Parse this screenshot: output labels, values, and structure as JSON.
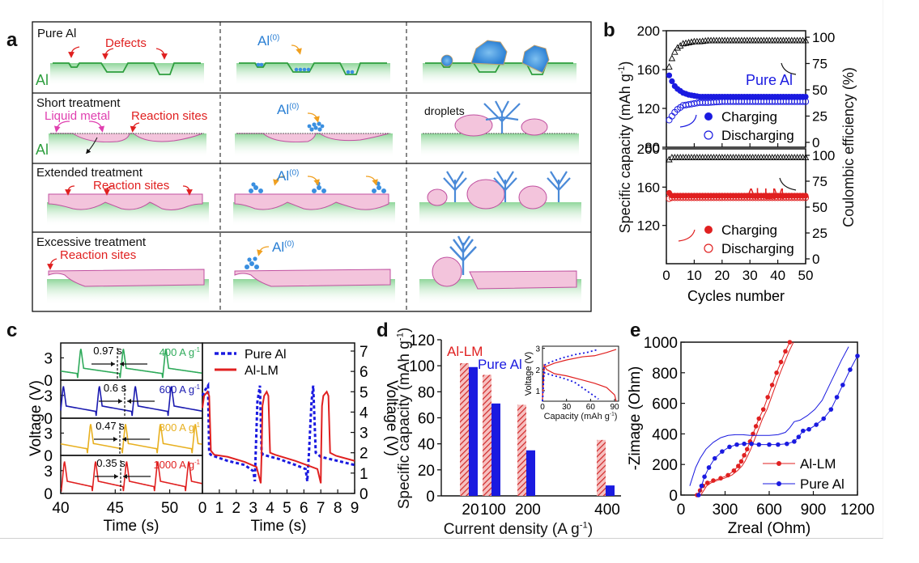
{
  "figure": {
    "panel_letters": [
      "a",
      "b",
      "c",
      "d",
      "e"
    ]
  },
  "panel_a": {
    "rows": [
      {
        "title": "Pure Al",
        "base_label": "Al",
        "annotations": [
          "Defects"
        ],
        "middle_label": "Al",
        "middle_sup": "(0)",
        "right_label": ""
      },
      {
        "title": "Short treatment",
        "base_label": "Al",
        "annotations": [
          "Liquid metal",
          "Reaction sites"
        ],
        "middle_label": "Al",
        "middle_sup": "(0)",
        "right_label": "droplets"
      },
      {
        "title": "Extended treatment",
        "base_label": "",
        "annotations": [
          "Reaction sites"
        ],
        "middle_label": "Al",
        "middle_sup": "(0)",
        "right_label": ""
      },
      {
        "title": "Excessive treatment",
        "base_label": "",
        "annotations": [
          "Reaction sites"
        ],
        "middle_label": "Al",
        "middle_sup": "(0)",
        "right_label": ""
      }
    ],
    "colors": {
      "al": "#2e9e3e",
      "defect": "#e02020",
      "lm": "#e040b0",
      "al0": "#2a7fd4",
      "arrow": "#f0a020"
    }
  },
  "chart_data": [
    {
      "id": "b",
      "type": "scatter",
      "title": "",
      "xlabel": "Cycles number",
      "ylabel": "Specific capacity (mAh g-1)",
      "ylabel_right": "Coulombic efficiency (%)",
      "xlim": [
        0,
        50
      ],
      "xticks": [
        0,
        10,
        20,
        30,
        40,
        50
      ],
      "subplots": [
        {
          "name": "Pure Al",
          "ylim": [
            80,
            200
          ],
          "yticks": [
            80,
            120,
            160,
            200
          ],
          "ylim_right": [
            0,
            100
          ],
          "yticks_right": [
            0,
            25,
            50,
            75,
            100
          ],
          "color": "#1a1ae0",
          "series": [
            {
              "name": "Charging",
              "axis": "left",
              "marker": "filled-circle",
              "x": [
                1,
                2,
                3,
                4,
                5,
                6,
                8,
                10,
                12,
                15,
                20,
                25,
                30,
                35,
                40,
                45,
                50
              ],
              "y": [
                154,
                148,
                143,
                140,
                138,
                136,
                134,
                133,
                132,
                132,
                132,
                132,
                132,
                132,
                132,
                132,
                132
              ]
            },
            {
              "name": "Discharging",
              "axis": "left",
              "marker": "open-circle",
              "x": [
                1,
                2,
                3,
                4,
                5,
                6,
                8,
                10,
                12,
                15,
                20,
                25,
                30,
                35,
                40,
                45,
                50
              ],
              "y": [
                108,
                112,
                116,
                119,
                121,
                123,
                124,
                125,
                126,
                126,
                127,
                127,
                127,
                127,
                127,
                127,
                127
              ]
            },
            {
              "name": "Coulombic efficiency",
              "axis": "right",
              "marker": "open-triangle",
              "color": "#000000",
              "x": [
                1,
                2,
                3,
                4,
                5,
                6,
                8,
                10,
                12,
                15,
                20,
                25,
                30,
                35,
                40,
                45,
                50
              ],
              "y": [
                72,
                80,
                86,
                90,
                92,
                94,
                95,
                96,
                96,
                97,
                97,
                97,
                97,
                97,
                97,
                97,
                97
              ]
            }
          ]
        },
        {
          "name": "Al-LM",
          "ylim": [
            80,
            200
          ],
          "yticks": [
            120,
            160,
            200
          ],
          "ylim_right": [
            0,
            100
          ],
          "yticks_right": [
            0,
            25,
            50,
            75,
            100
          ],
          "color": "#e02020",
          "series": [
            {
              "name": "Charging",
              "axis": "left",
              "marker": "filled-circle",
              "x": [
                1,
                2,
                5,
                10,
                15,
                20,
                25,
                30,
                35,
                40,
                45,
                50
              ],
              "y": [
                154,
                151,
                151,
                151,
                151,
                151,
                151,
                151,
                151,
                151,
                151,
                151
              ]
            },
            {
              "name": "Discharging",
              "axis": "left",
              "marker": "open-circle",
              "x": [
                1,
                2,
                5,
                10,
                15,
                20,
                25,
                30,
                35,
                40,
                45,
                50
              ],
              "y": [
                148,
                149,
                149,
                149,
                149,
                149,
                149,
                149,
                149,
                149,
                149,
                149
              ]
            },
            {
              "name": "Coulombic efficiency",
              "axis": "right",
              "marker": "open-triangle",
              "color": "#000000",
              "x": [
                1,
                2,
                5,
                10,
                15,
                20,
                25,
                30,
                35,
                40,
                45,
                50
              ],
              "y": [
                96,
                98,
                98,
                98,
                98,
                98,
                98,
                98,
                98,
                98,
                98,
                98
              ]
            }
          ]
        }
      ],
      "legend": [
        "Charging",
        "Discharging"
      ],
      "legend_position": "bottom-right"
    },
    {
      "id": "c-left",
      "type": "line",
      "xlabel": "Time (s)",
      "ylabel": "Voltage (V)",
      "xlim": [
        40,
        53
      ],
      "xticks": [
        40,
        45,
        50
      ],
      "ylim": [
        0,
        5
      ],
      "yticks": [
        0,
        3
      ],
      "subplots": [
        {
          "rate": "400 A g-1",
          "period_label": "0.97 s",
          "period": 3.9,
          "color": "#2eaa5a",
          "first_peak": 41.8
        },
        {
          "rate": "600 A g-1",
          "period_label": "0.6 s",
          "period": 3.3,
          "color": "#1a1ab0",
          "first_peak": 43.5
        },
        {
          "rate": "800 A g-1",
          "period_label": "0.47 s",
          "period": 3.2,
          "color": "#e8b020",
          "first_peak": 42.7
        },
        {
          "rate": "1000 A g-1",
          "period_label": "0.35 s",
          "period": 2.85,
          "color": "#e02020",
          "first_peak": 40.3
        }
      ]
    },
    {
      "id": "c-right",
      "type": "line",
      "xlabel": "Time (s)",
      "ylabel": "Voltage (V)",
      "xlim": [
        0,
        9
      ],
      "xticks": [
        0,
        1,
        2,
        3,
        4,
        5,
        6,
        7,
        8,
        9
      ],
      "ylim": [
        0,
        7
      ],
      "yticks": [
        0,
        1,
        2,
        3,
        4,
        5,
        6,
        7
      ],
      "series": [
        {
          "name": "Pure Al",
          "style": "dotted",
          "color": "#1a1ae0",
          "x": [
            0,
            0.1,
            0.25,
            0.33,
            0.4,
            0.5,
            0.8,
            1.5,
            2.5,
            3.0,
            3.1,
            3.15,
            3.25,
            3.4,
            3.5,
            3.6,
            4.5,
            5.5,
            6.1,
            6.2,
            6.3,
            6.45,
            6.55,
            6.7,
            7.0,
            8.0,
            9.0
          ],
          "y": [
            4.8,
            5.0,
            5.2,
            5.3,
            2.0,
            1.9,
            1.8,
            1.6,
            1.4,
            1.1,
            0.6,
            2.0,
            4.5,
            5.3,
            2.0,
            1.9,
            1.7,
            1.4,
            1.2,
            0.6,
            2.0,
            4.5,
            5.3,
            2.0,
            1.8,
            1.6,
            1.4
          ]
        },
        {
          "name": "Al-LM",
          "style": "solid",
          "color": "#e02020",
          "x": [
            0,
            0.1,
            0.3,
            0.4,
            0.5,
            0.7,
            1.5,
            2.5,
            3.2,
            3.45,
            3.5,
            3.55,
            3.65,
            3.8,
            3.9,
            4.0,
            4.3,
            5.5,
            6.8,
            7.0,
            7.02,
            7.07,
            7.15,
            7.35,
            7.45,
            7.55,
            7.9,
            9.0
          ],
          "y": [
            4.2,
            4.8,
            5.0,
            4.8,
            2.1,
            1.9,
            1.8,
            1.55,
            1.3,
            0.5,
            2.0,
            4.3,
            4.8,
            5.0,
            4.8,
            2.0,
            1.9,
            1.6,
            1.2,
            0.5,
            2.0,
            4.3,
            4.8,
            5.0,
            4.8,
            2.0,
            1.85,
            1.6
          ]
        }
      ],
      "legend": [
        "Pure Al",
        "Al-LM"
      ],
      "legend_position": "top-left"
    },
    {
      "id": "d",
      "type": "bar",
      "xlabel": "Current density (A g-1)",
      "ylabel": "Specific capacity (mAh g-1)",
      "categories": [
        "20",
        "100",
        "200",
        "400"
      ],
      "ylim": [
        0,
        120
      ],
      "yticks": [
        0,
        20,
        40,
        60,
        80,
        100,
        120
      ],
      "series": [
        {
          "name": "Al-LM",
          "color": "#e02020",
          "pattern": "hatched",
          "values": [
            102,
            93,
            70,
            43
          ]
        },
        {
          "name": "Pure Al",
          "color": "#1a1ae0",
          "pattern": "solid",
          "values": [
            99,
            71,
            35,
            8
          ]
        }
      ],
      "legend": [
        "Al-LM",
        "Pure Al"
      ],
      "legend_position": "top-left",
      "inset": {
        "type": "line",
        "xlabel": "Capacity (mAh g-1)",
        "ylabel": "Voltage (V)",
        "xlim": [
          0,
          95
        ],
        "xticks": [
          0,
          30,
          60,
          90
        ],
        "ylim": [
          0.5,
          3.1
        ],
        "yticks": [
          1,
          2,
          3
        ],
        "series": [
          {
            "name": "Al-LM charge",
            "style": "solid",
            "color": "#e02020",
            "x": [
              0,
              2,
              5,
              15,
              30,
              50,
              65,
              80,
              92
            ],
            "y": [
              0.6,
              2.1,
              2.15,
              2.3,
              2.45,
              2.6,
              2.65,
              2.8,
              2.95
            ]
          },
          {
            "name": "Al-LM discharge",
            "style": "solid",
            "color": "#e02020",
            "x": [
              0,
              2,
              5,
              15,
              30,
              50,
              65,
              80,
              90,
              92
            ],
            "y": [
              0.6,
              2.2,
              2.0,
              1.8,
              1.7,
              1.5,
              1.35,
              1.15,
              0.8,
              0.5
            ]
          },
          {
            "name": "Pure Al charge",
            "style": "dotted",
            "color": "#1a1ae0",
            "x": [
              0,
              2,
              10,
              25,
              40,
              55,
              70
            ],
            "y": [
              0.5,
              2.2,
              2.35,
              2.55,
              2.7,
              2.8,
              2.95
            ]
          },
          {
            "name": "Pure Al discharge",
            "style": "dotted",
            "color": "#1a1ae0",
            "x": [
              0,
              2,
              10,
              25,
              40,
              55,
              70
            ],
            "y": [
              0.5,
              1.85,
              1.75,
              1.6,
              1.4,
              1.0,
              0.6
            ]
          }
        ]
      }
    },
    {
      "id": "e",
      "type": "scatter",
      "xlabel": "Zreal (Ohm)",
      "ylabel": "-Zimage (Ohm)",
      "xlim": [
        0,
        1200
      ],
      "xticks": [
        0,
        300,
        600,
        900,
        1200
      ],
      "ylim": [
        0,
        1000
      ],
      "yticks": [
        0,
        200,
        400,
        600,
        800,
        1000
      ],
      "series": [
        {
          "name": "Al-LM",
          "color": "#e02020",
          "marker": "filled-circle-line",
          "x": [
            110,
            130,
            150,
            180,
            220,
            270,
            320,
            360,
            390,
            410,
            430,
            450,
            470,
            490,
            510,
            530,
            560,
            590,
            620,
            650,
            680,
            710,
            740
          ],
          "y": [
            0,
            30,
            60,
            80,
            95,
            110,
            130,
            160,
            190,
            220,
            260,
            300,
            350,
            400,
            450,
            500,
            560,
            640,
            720,
            800,
            870,
            940,
            1000
          ]
        },
        {
          "name": "Pure Al",
          "color": "#1a1ae0",
          "marker": "filled-circle-line",
          "x": [
            120,
            140,
            160,
            190,
            230,
            280,
            330,
            380,
            430,
            480,
            530,
            600,
            660,
            720,
            770,
            800,
            830,
            870,
            920,
            970,
            1020,
            1060,
            1100,
            1150,
            1200
          ],
          "y": [
            0,
            60,
            120,
            180,
            240,
            285,
            315,
            330,
            335,
            335,
            330,
            330,
            330,
            335,
            350,
            380,
            420,
            430,
            460,
            500,
            560,
            640,
            720,
            820,
            910
          ]
        }
      ],
      "legend": [
        "Al-LM",
        "Pure Al"
      ],
      "legend_position": "bottom-right"
    }
  ]
}
